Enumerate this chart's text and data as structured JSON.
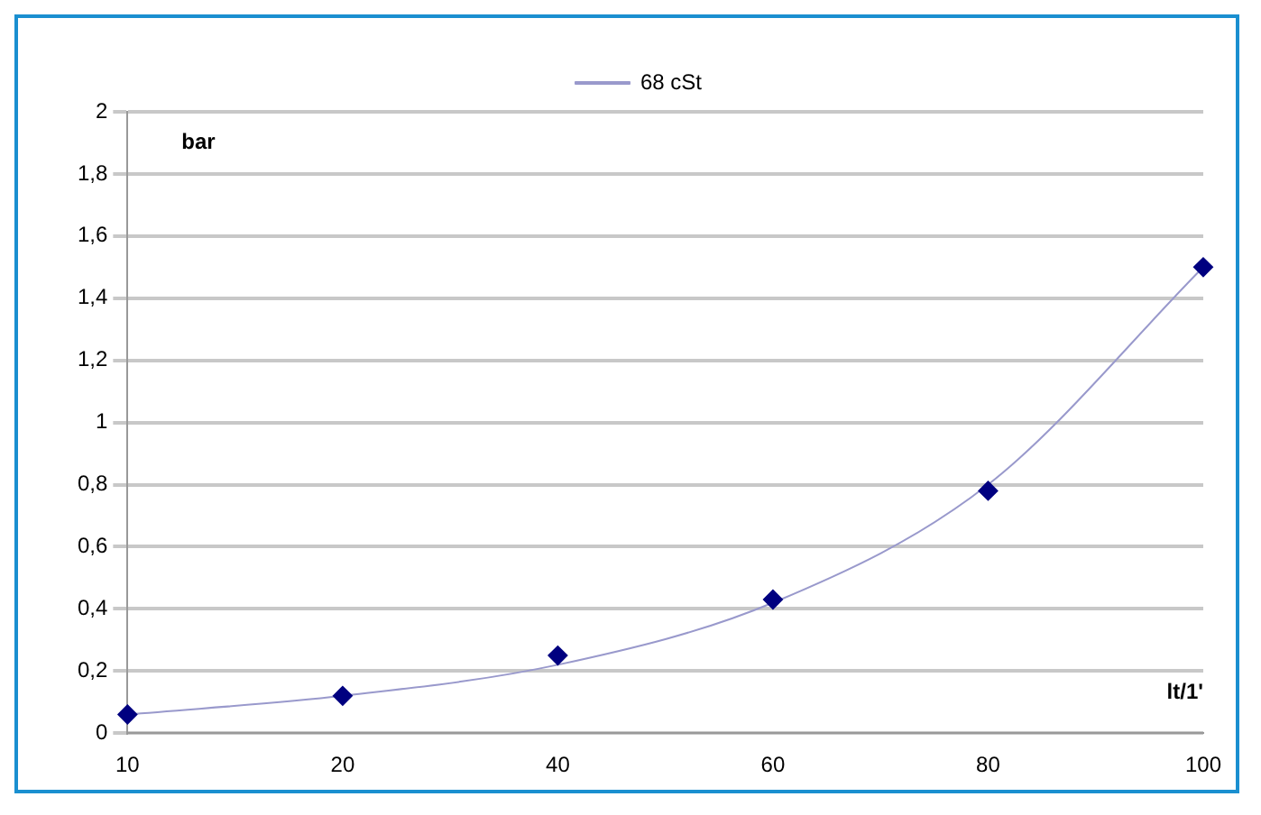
{
  "chart_data": {
    "type": "line",
    "xlabel": "lt/1'",
    "ylabel": "bar",
    "categories": [
      "10",
      "20",
      "40",
      "60",
      "80",
      "100"
    ],
    "series": [
      {
        "type": "scatter",
        "color": "#000080",
        "marker": "diamond",
        "values": [
          0.06,
          0.12,
          0.25,
          0.43,
          0.78,
          1.5
        ]
      },
      {
        "name": "68 cSt",
        "color": "#9999cc",
        "marker": "none",
        "values": [
          0.06,
          0.12,
          0.22,
          0.42,
          0.8,
          1.5
        ]
      }
    ],
    "ylim": [
      0,
      2
    ],
    "yticks": [
      0,
      {
        "value": 0.2,
        "label": "0,2"
      },
      {
        "value": 0.4,
        "label": "0,4"
      },
      {
        "value": 0.6,
        "label": "0,6"
      },
      {
        "value": 0.8,
        "label": "0,8"
      },
      1,
      {
        "value": 1.2,
        "label": "1,2"
      },
      {
        "value": 1.4,
        "label": "1,4"
      },
      {
        "value": 1.6,
        "label": "1,6"
      },
      {
        "value": 1.8,
        "label": "1,8"
      },
      2
    ],
    "grid": "y",
    "legend": "top"
  }
}
